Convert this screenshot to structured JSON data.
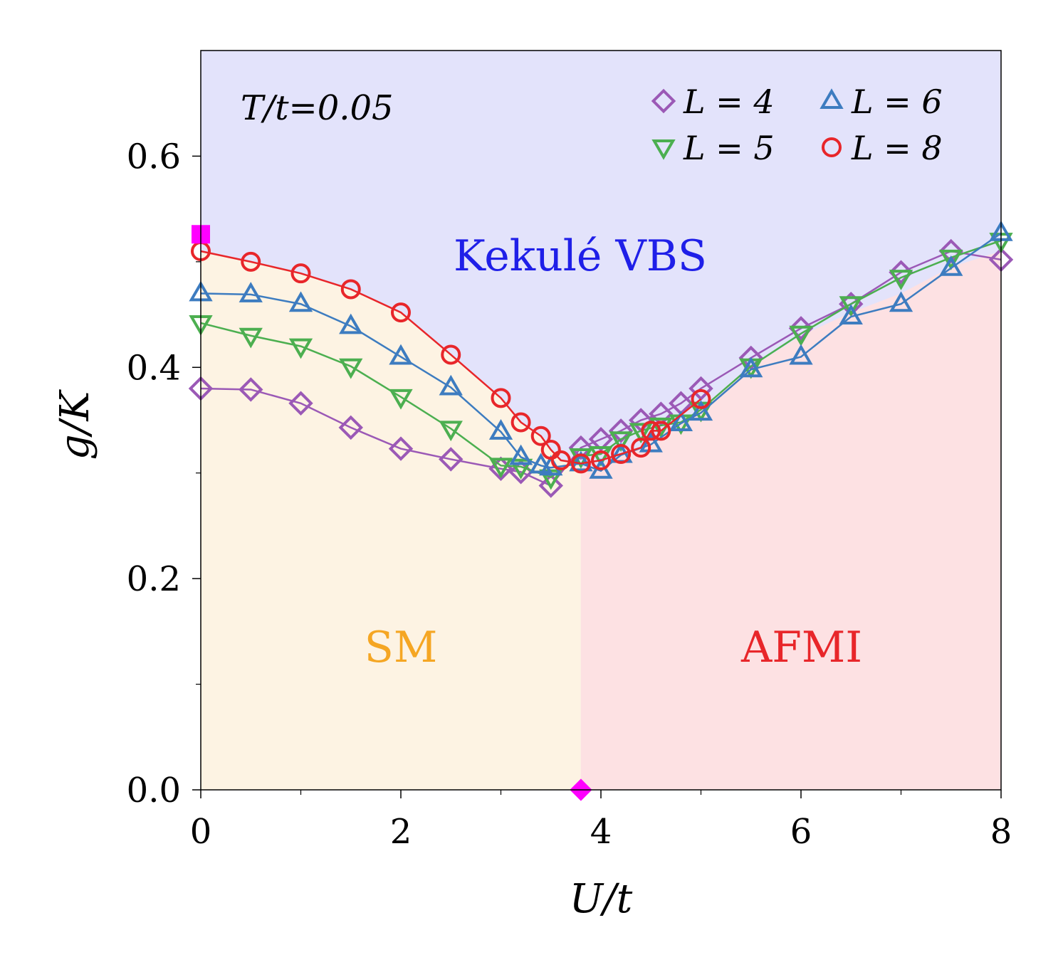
{
  "chart_data": {
    "type": "scatter",
    "title": "",
    "xlabel": "U/t",
    "ylabel": "g/K",
    "xlim": [
      0,
      8
    ],
    "ylim": [
      0,
      0.7
    ],
    "xticks": [
      "0",
      "2",
      "4",
      "6",
      "8"
    ],
    "yticks": [
      "0.0",
      "0.2",
      "0.4",
      "0.6"
    ],
    "annotation": "T/t=0.05",
    "regions": [
      {
        "name": "Kekulé VBS",
        "fill": "#e3e3fb",
        "text_color": "#1f1fe8"
      },
      {
        "name": "SM",
        "fill": "#fdf3e3",
        "text_color": "#f5a623"
      },
      {
        "name": "AFMI",
        "fill": "#fde1e3",
        "text_color": "#e8262a"
      }
    ],
    "series": [
      {
        "name": "L = 4",
        "marker": "diamond",
        "color": "#9b59b6",
        "x": [
          0,
          0.5,
          1.0,
          1.5,
          2.0,
          2.5,
          3.0,
          3.2,
          3.5,
          3.8,
          4.0,
          4.2,
          4.4,
          4.6,
          4.8,
          5.0,
          5.5,
          6.0,
          6.5,
          7.0,
          7.5,
          8.0
        ],
        "y": [
          0.38,
          0.379,
          0.366,
          0.343,
          0.323,
          0.313,
          0.304,
          0.301,
          0.288,
          0.324,
          0.332,
          0.34,
          0.35,
          0.356,
          0.366,
          0.38,
          0.409,
          0.437,
          0.46,
          0.49,
          0.51,
          0.502
        ]
      },
      {
        "name": "L = 5",
        "marker": "triangle-down",
        "color": "#4caf50",
        "x": [
          0,
          0.5,
          1.0,
          1.5,
          2.0,
          2.5,
          3.0,
          3.2,
          3.5,
          3.8,
          4.0,
          4.2,
          4.4,
          4.6,
          4.8,
          5.0,
          5.5,
          6.0,
          6.5,
          7.0,
          7.5,
          8.0
        ],
        "y": [
          0.442,
          0.43,
          0.42,
          0.401,
          0.372,
          0.342,
          0.307,
          0.306,
          0.296,
          0.316,
          0.318,
          0.332,
          0.34,
          0.345,
          0.348,
          0.36,
          0.401,
          0.432,
          0.46,
          0.485,
          0.504,
          0.52
        ]
      },
      {
        "name": "L = 6",
        "marker": "triangle-up",
        "color": "#3d7cc0",
        "x": [
          0,
          0.5,
          1.0,
          1.5,
          2.0,
          2.5,
          3.0,
          3.2,
          3.4,
          3.5,
          3.8,
          4.0,
          4.2,
          4.5,
          4.8,
          5.0,
          5.5,
          6.0,
          6.5,
          7.0,
          7.5,
          8.0
        ],
        "y": [
          0.47,
          0.469,
          0.46,
          0.439,
          0.41,
          0.381,
          0.339,
          0.315,
          0.307,
          0.305,
          0.309,
          0.302,
          0.317,
          0.327,
          0.347,
          0.357,
          0.398,
          0.41,
          0.448,
          0.46,
          0.494,
          0.527
        ]
      },
      {
        "name": "L = 8",
        "marker": "circle",
        "color": "#e8262a",
        "x": [
          0,
          0.5,
          1.0,
          1.5,
          2.0,
          2.5,
          3.0,
          3.2,
          3.4,
          3.5,
          3.6,
          3.8,
          4.0,
          4.2,
          4.4,
          4.5,
          4.6,
          5.0
        ],
        "y": [
          0.51,
          0.5,
          0.489,
          0.474,
          0.452,
          0.412,
          0.371,
          0.348,
          0.335,
          0.322,
          0.312,
          0.309,
          0.312,
          0.318,
          0.324,
          0.34,
          0.34,
          0.37
        ]
      }
    ],
    "special_points": [
      {
        "name": "U-axis critical point",
        "marker": "diamond",
        "color": "#ff00ff",
        "x": 3.8,
        "y": 0.0
      },
      {
        "name": "g-axis critical point",
        "marker": "square",
        "color": "#ff00ff",
        "x": 0.0,
        "y": 0.526
      }
    ],
    "legend": {
      "position": "top-right",
      "entries": [
        "L = 4",
        "L = 6",
        "L = 5",
        "L = 8"
      ]
    }
  }
}
